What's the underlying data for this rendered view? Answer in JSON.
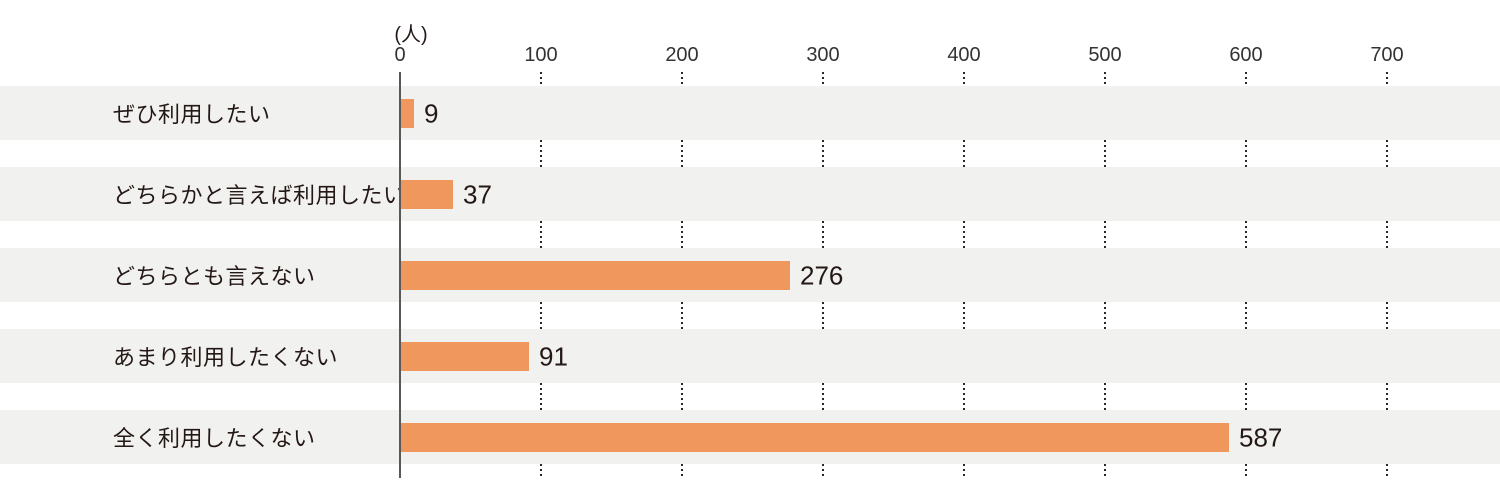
{
  "chart_data": {
    "type": "bar",
    "orientation": "horizontal",
    "title": "",
    "xlabel": "(人)",
    "ylabel": "",
    "unit_label": "(人)",
    "categories": [
      "ぜひ利用したい",
      "どちらかと言えば利用したい",
      "どちらとも言えない",
      "あまり利用したくない",
      "全く利用したくない"
    ],
    "values": [
      9,
      37,
      276,
      91,
      587
    ],
    "value_labels": [
      "9",
      "37",
      "276",
      "91",
      "587"
    ],
    "xlim": [
      0,
      700
    ],
    "x_ticks": [
      0,
      100,
      200,
      300,
      400,
      500,
      600,
      700
    ],
    "grid": "dotted-vertical-between-row-bands",
    "legend": "none",
    "colors": {
      "bar": "#f0975e",
      "row_band": "#f1f1ef",
      "axis_line": "#595757",
      "gridline_dots": "#2e2624",
      "text": "#231815",
      "background": "#ffffff"
    }
  }
}
